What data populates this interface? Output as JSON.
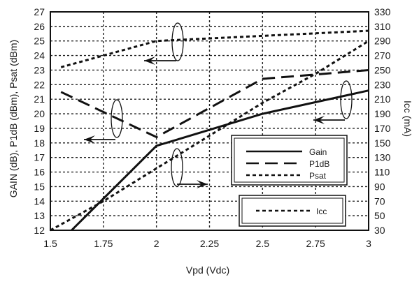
{
  "chart_data": {
    "type": "line",
    "title": "",
    "xlabel": "Vpd (Vdc)",
    "ylabel_left": "GAIN (dB), P1dB (dBm), Psat (dBm)",
    "ylabel_right": "Icc (mA)",
    "xlim": [
      1.5,
      3
    ],
    "ylim_left": [
      12,
      27
    ],
    "ylim_right": [
      30,
      330
    ],
    "x_ticks": [
      "1.5",
      "1.75",
      "2",
      "2.25",
      "2.5",
      "2.75",
      "3"
    ],
    "y_left_ticks": [
      "12",
      "13",
      "14",
      "15",
      "16",
      "17",
      "18",
      "19",
      "20",
      "21",
      "22",
      "23",
      "24",
      "25",
      "26",
      "27"
    ],
    "y_right_ticks": [
      "30",
      "50",
      "70",
      "90",
      "110",
      "130",
      "150",
      "170",
      "190",
      "210",
      "230",
      "250",
      "270",
      "290",
      "310",
      "330"
    ],
    "grid": true,
    "legend_gain_pbsat": [
      "Gain",
      "P1dB",
      "Psat"
    ],
    "legend_icc": [
      "Icc"
    ],
    "series": [
      {
        "name": "Gain",
        "axis": "left",
        "dash": "solid",
        "x": [
          1.6,
          2.0,
          2.5,
          3.0
        ],
        "y": [
          12.0,
          17.8,
          20.0,
          21.6
        ]
      },
      {
        "name": "P1dB",
        "axis": "left",
        "dash": "longdash",
        "x": [
          1.55,
          2.0,
          2.5,
          3.0
        ],
        "y": [
          21.5,
          18.4,
          22.4,
          23.0
        ]
      },
      {
        "name": "Psat",
        "axis": "left",
        "dash": "shortdash",
        "x": [
          1.55,
          2.0,
          3.0
        ],
        "y": [
          23.2,
          25.0,
          25.7
        ]
      },
      {
        "name": "Icc",
        "axis": "right",
        "dash": "shortdash",
        "x": [
          1.5,
          1.75,
          2.0,
          2.25,
          2.5,
          2.75,
          3.0
        ],
        "y": [
          30,
          70,
          115,
          160,
          205,
          245,
          290
        ]
      }
    ]
  }
}
